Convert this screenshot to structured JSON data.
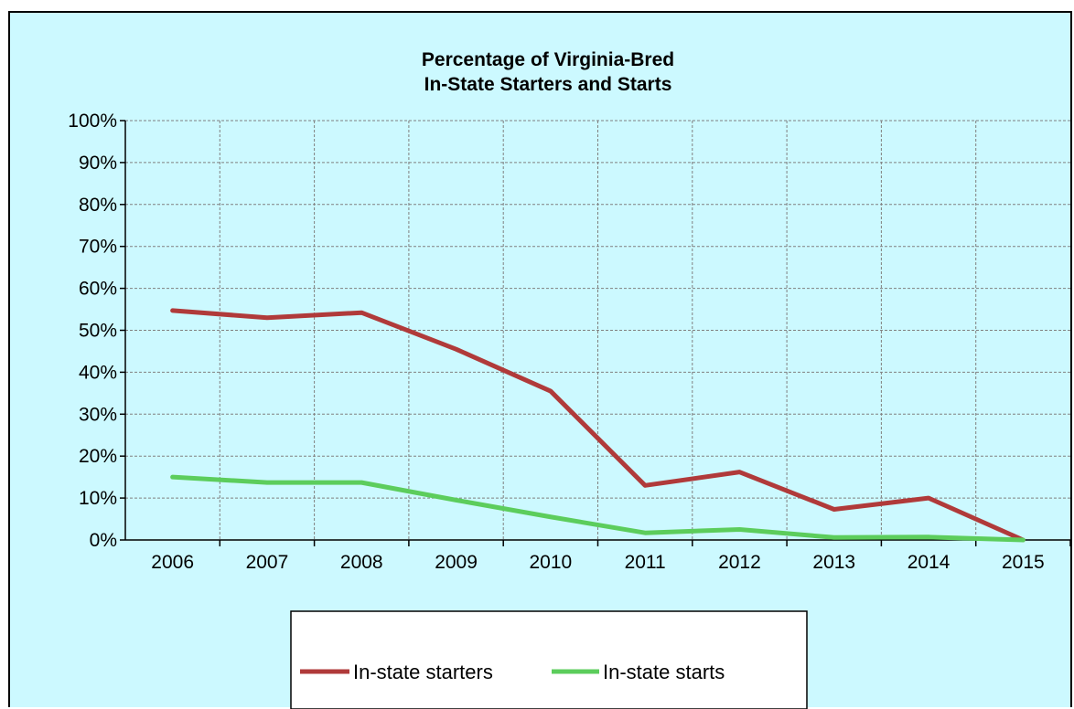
{
  "chart_data": {
    "type": "line",
    "title_lines": [
      "Percentage of Virginia-Bred",
      "In-State Starters and Starts"
    ],
    "categories": [
      "2006",
      "2007",
      "2008",
      "2009",
      "2010",
      "2011",
      "2012",
      "2013",
      "2014",
      "2015"
    ],
    "y_tick_labels": [
      "0%",
      "10%",
      "20%",
      "30%",
      "40%",
      "50%",
      "60%",
      "70%",
      "80%",
      "90%",
      "100%"
    ],
    "ylim": [
      0,
      100
    ],
    "grid": true,
    "legend_position": "bottom",
    "series": [
      {
        "name": "In-state starters",
        "color": "#b03a3a",
        "values": [
          54.7,
          53.0,
          54.2,
          45.5,
          35.5,
          13.0,
          16.2,
          7.3,
          10.0,
          0.0
        ]
      },
      {
        "name": "In-state starts",
        "color": "#5ccd5c",
        "values": [
          15.0,
          13.7,
          13.7,
          9.5,
          5.5,
          1.7,
          2.5,
          0.6,
          0.7,
          0.0
        ]
      }
    ]
  },
  "colors": {
    "background": "#ccf9ff",
    "grid": "#808080",
    "axis": "#000000"
  }
}
